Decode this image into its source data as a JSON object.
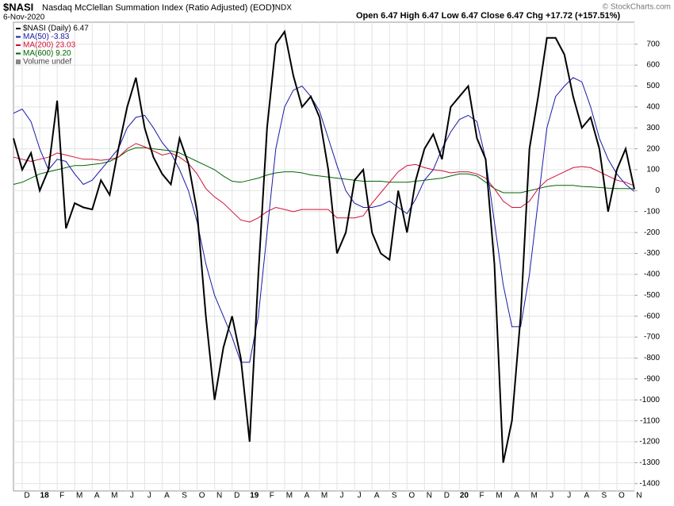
{
  "chart_data": {
    "type": "line",
    "title": "$NASI",
    "subtitle": "Nasdaq McClellan Summation Index (Ratio Adjusted) (EOD)",
    "exchange": "INDX",
    "date": "6-Nov-2020",
    "quote": "Open 6.47  High 6.47  Low 6.47  Close 6.47  Chg +17.72 (+157.51%)",
    "credit": "© StockCharts.com",
    "volume_label": "Volume undef",
    "legend_position": "upper left",
    "grid": true,
    "categories": [
      null,
      "D",
      null,
      "18",
      null,
      "F",
      null,
      "M",
      null,
      "A",
      null,
      "M",
      null,
      "J",
      null,
      "J",
      null,
      "A",
      null,
      "S",
      null,
      "O",
      null,
      "N",
      null,
      "D",
      null,
      "19",
      null,
      "F",
      null,
      "M",
      null,
      "A",
      null,
      "M",
      null,
      "J",
      null,
      "J",
      null,
      "A",
      null,
      "S",
      null,
      "O",
      null,
      "N",
      null,
      "D",
      null,
      "20",
      null,
      "F",
      null,
      "M",
      null,
      "A",
      null,
      "M",
      null,
      "J",
      null,
      "J",
      null,
      "A",
      null,
      "S",
      null,
      "O",
      null,
      "N"
    ],
    "ylim": [
      -1435,
      805
    ],
    "yticks": [
      -1400,
      -1300,
      -1200,
      -1100,
      -1000,
      -900,
      -800,
      -700,
      -600,
      -500,
      -400,
      -300,
      -200,
      -100,
      0,
      100,
      200,
      300,
      400,
      500,
      600,
      700
    ],
    "series": [
      {
        "name": "$NASI (Daily) 6.47",
        "color": "#000000",
        "values": [
          250,
          100,
          180,
          0,
          100,
          430,
          -180,
          -60,
          -80,
          -90,
          50,
          -20,
          200,
          400,
          540,
          300,
          160,
          80,
          30,
          250,
          130,
          -100,
          -600,
          -1000,
          -750,
          -600,
          -800,
          -1200,
          -400,
          300,
          700,
          760,
          550,
          400,
          450,
          350,
          100,
          -300,
          -200,
          50,
          100,
          -200,
          -300,
          -330,
          0,
          -200,
          50,
          200,
          270,
          150,
          400,
          450,
          500,
          250,
          150,
          -350,
          -1300,
          -1100,
          -600,
          200,
          450,
          730,
          730,
          650,
          450,
          300,
          350,
          200,
          -100,
          100,
          200,
          6.47
        ]
      },
      {
        "name": "MA(50) -3.83",
        "color": "#1a1aa6",
        "values": [
          370,
          390,
          330,
          200,
          100,
          150,
          140,
          80,
          30,
          50,
          100,
          150,
          200,
          300,
          350,
          360,
          300,
          230,
          180,
          100,
          0,
          -150,
          -350,
          -500,
          -600,
          -700,
          -820,
          -820,
          -600,
          -200,
          200,
          400,
          480,
          500,
          450,
          380,
          250,
          120,
          0,
          -60,
          -80,
          -80,
          -70,
          -50,
          -80,
          -110,
          -40,
          50,
          100,
          200,
          280,
          340,
          360,
          330,
          150,
          -150,
          -450,
          -650,
          -650,
          -400,
          -50,
          300,
          450,
          500,
          540,
          520,
          400,
          250,
          150,
          80,
          30,
          -3.83
        ]
      },
      {
        "name": "MA(200) 23.03",
        "color": "#d0103a",
        "values": [
          160,
          150,
          140,
          150,
          160,
          180,
          170,
          160,
          150,
          150,
          145,
          150,
          160,
          200,
          225,
          210,
          190,
          170,
          180,
          160,
          130,
          80,
          10,
          -30,
          -60,
          -100,
          -140,
          -150,
          -130,
          -100,
          -80,
          -90,
          -100,
          -90,
          -90,
          -90,
          -90,
          -130,
          -130,
          -130,
          -120,
          -60,
          -10,
          40,
          90,
          120,
          125,
          110,
          100,
          95,
          85,
          90,
          90,
          80,
          60,
          10,
          -50,
          -80,
          -80,
          -50,
          10,
          50,
          70,
          90,
          110,
          115,
          110,
          90,
          70,
          50,
          40,
          23.03
        ]
      },
      {
        "name": "MA(600) 9.20",
        "color": "#006400",
        "values": [
          30,
          40,
          60,
          80,
          90,
          100,
          110,
          120,
          120,
          125,
          130,
          140,
          160,
          190,
          205,
          205,
          200,
          195,
          190,
          180,
          160,
          140,
          120,
          100,
          70,
          45,
          40,
          50,
          60,
          75,
          85,
          90,
          90,
          85,
          75,
          70,
          65,
          60,
          55,
          50,
          45,
          45,
          45,
          40,
          40,
          40,
          45,
          50,
          55,
          60,
          70,
          80,
          80,
          70,
          40,
          10,
          -10,
          -10,
          -10,
          0,
          10,
          20,
          25,
          25,
          25,
          20,
          18,
          15,
          12,
          10,
          10,
          9.2
        ]
      }
    ]
  }
}
